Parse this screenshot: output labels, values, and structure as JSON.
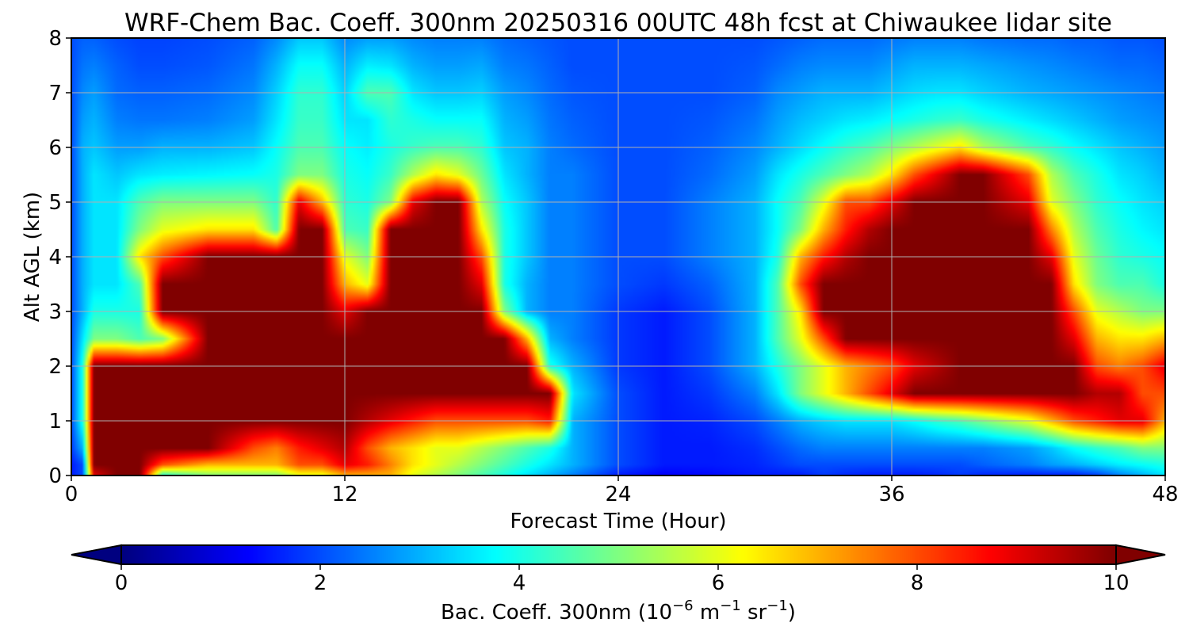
{
  "chart_data": {
    "type": "heatmap",
    "title": "WRF-Chem Bac. Coeff. 300nm  20250316 00UTC 48h fcst at Chiwaukee lidar site",
    "xlabel": "Forecast Time (Hour)",
    "ylabel": "Alt AGL (km)",
    "xlim": [
      0,
      48
    ],
    "ylim": [
      0,
      8
    ],
    "xticks": [
      "0",
      "12",
      "24",
      "36",
      "48"
    ],
    "yticks": [
      "0",
      "1",
      "2",
      "3",
      "4",
      "5",
      "6",
      "7",
      "8"
    ],
    "grid": true,
    "colormap": "jet",
    "colorbar": {
      "label_main": "Bac. Coeff. 300nm  (10",
      "label_exp1": "−6",
      "label_mid": " m",
      "label_exp2": "−1",
      "label_mid2": " sr",
      "label_exp3": "−1",
      "label_end": ")",
      "vmin": 0,
      "vmax": 10,
      "extend": "both",
      "ticks": [
        "0",
        "2",
        "4",
        "6",
        "8",
        "10"
      ],
      "orientation": "horizontal"
    },
    "x_hours": [
      0,
      0.5,
      1,
      2,
      3,
      4,
      6,
      8,
      9,
      10,
      11,
      12,
      13,
      14,
      15,
      16,
      17,
      18,
      19,
      20,
      21,
      22,
      24,
      26,
      28,
      30,
      31,
      32,
      33,
      34,
      35,
      36,
      37,
      38,
      39,
      40,
      42,
      43,
      44,
      45,
      46,
      47,
      48
    ],
    "z_km": [
      0,
      0.2,
      0.5,
      1,
      1.5,
      2,
      2.5,
      3,
      3.5,
      4,
      4.5,
      5,
      5.5,
      6,
      6.5,
      7,
      7.5,
      8
    ],
    "values_description": "backscatter coefficient per (altitude, hour) grid; rows = altitude levels",
    "values": [
      [
        1.5,
        2,
        9,
        10,
        10,
        4,
        5,
        5,
        5,
        6,
        6,
        7,
        7,
        7,
        6,
        5.5,
        5,
        4.5,
        4,
        3.5,
        3,
        2.5,
        1.5,
        1.2,
        1.3,
        1.5,
        1.5,
        1.5,
        1.8,
        1.6,
        1.5,
        1.5,
        1.5,
        1.6,
        1.8,
        1.6,
        1.5,
        1.5,
        1.5,
        1.8,
        2.5,
        3,
        3.5
      ],
      [
        1.5,
        2,
        10,
        10,
        10,
        8,
        7,
        7,
        7,
        8,
        8,
        9,
        8.5,
        7.5,
        6.5,
        6,
        5.5,
        5,
        4.5,
        4,
        3.5,
        3,
        2,
        1.5,
        1.5,
        1.6,
        1.8,
        2,
        2,
        2,
        2,
        2,
        2,
        2,
        2,
        2.2,
        2.5,
        2.8,
        3,
        3.3,
        3.6,
        3.8,
        4
      ],
      [
        1.8,
        3,
        10,
        10,
        10,
        10,
        10,
        8,
        7.5,
        8.5,
        9,
        9.5,
        8,
        7,
        6.5,
        6,
        6,
        5.5,
        5,
        4.5,
        4,
        3,
        2,
        1.5,
        1.5,
        1.7,
        2,
        2.3,
        2.5,
        2.5,
        2.5,
        2.5,
        2.5,
        2.5,
        2.5,
        2.5,
        2.8,
        3.2,
        3.8,
        4.2,
        4.5,
        5,
        5
      ],
      [
        2,
        4,
        10,
        10,
        10,
        10,
        10,
        10,
        10,
        10,
        10,
        10,
        9.5,
        9,
        8.5,
        8,
        8,
        8,
        8,
        8,
        8.5,
        3,
        2,
        1.5,
        1.6,
        2,
        2.5,
        3,
        3.3,
        3.5,
        3.5,
        3.5,
        3.8,
        4.2,
        4.5,
        5,
        6,
        7,
        8,
        8.5,
        9,
        9,
        7
      ],
      [
        2,
        4,
        10,
        10,
        10,
        10,
        10,
        10,
        10,
        10,
        10,
        10,
        10,
        10,
        10,
        10,
        10,
        10,
        10,
        10,
        10,
        3.5,
        2,
        1.5,
        1.8,
        2.5,
        3.5,
        5,
        6,
        7,
        8,
        9,
        10,
        10,
        10,
        10,
        10,
        10,
        10,
        9.5,
        9.5,
        8,
        8
      ],
      [
        2,
        4,
        10,
        10,
        10,
        10,
        10,
        10,
        10,
        10,
        10,
        10,
        10,
        10,
        10,
        10,
        10,
        10,
        10,
        10,
        4,
        3,
        1.8,
        1.5,
        2,
        3,
        4,
        5,
        6,
        7,
        7.5,
        8,
        9,
        9.5,
        10,
        10,
        10,
        10,
        10,
        8,
        7.5,
        8,
        9
      ],
      [
        2,
        3.5,
        5,
        5,
        4.5,
        5,
        10,
        10,
        10,
        10,
        10,
        10,
        10,
        10,
        10,
        10,
        10,
        10,
        10,
        7,
        3,
        2.5,
        1.8,
        1.5,
        2,
        3,
        4.5,
        6,
        8,
        10,
        10,
        10,
        10,
        10,
        10,
        10,
        10,
        10,
        9,
        7,
        6.5,
        6.5,
        7
      ],
      [
        2,
        3,
        4,
        4,
        4,
        10,
        10,
        10,
        10,
        10,
        10,
        9,
        10,
        10,
        10,
        10,
        10,
        10,
        5,
        3,
        2.5,
        2.5,
        1.8,
        1.5,
        2,
        3,
        4.5,
        6.5,
        10,
        10,
        10,
        10,
        10,
        10,
        10,
        10,
        10,
        10,
        8,
        6,
        5.5,
        5,
        5
      ],
      [
        2,
        3,
        3.5,
        3.5,
        4.5,
        10,
        10,
        10,
        10,
        10,
        10,
        7,
        6,
        10,
        10,
        10,
        10,
        9,
        4,
        3,
        2.5,
        2.5,
        2,
        1.8,
        2.2,
        3,
        4.5,
        8,
        10,
        10,
        10,
        10,
        10,
        10,
        10,
        10,
        10,
        10,
        6.5,
        5,
        4.5,
        4.5,
        4
      ],
      [
        2,
        3,
        3.5,
        3.5,
        6.5,
        8,
        10,
        10,
        10,
        10,
        10,
        6,
        5,
        10,
        10,
        10,
        10,
        8,
        4,
        3.2,
        2.5,
        2.5,
        2,
        2,
        2.5,
        3,
        4,
        7,
        8.5,
        9.5,
        10,
        10,
        10,
        10,
        10,
        10,
        10,
        9,
        6,
        4.8,
        4.2,
        4,
        3.8
      ],
      [
        2,
        3,
        3.5,
        3.5,
        5,
        6,
        6.5,
        6.5,
        4.5,
        10,
        10,
        4.5,
        4.3,
        10,
        10,
        10,
        10,
        6.5,
        4,
        3.2,
        2.5,
        2.5,
        2,
        2,
        2.5,
        3,
        3.8,
        5,
        7,
        8.5,
        9.5,
        10,
        10,
        10,
        10,
        10,
        10,
        7.5,
        5.5,
        4.5,
        4,
        3.7,
        3.5
      ],
      [
        2,
        3,
        3.5,
        3.5,
        4.5,
        5,
        5,
        5,
        4.2,
        9,
        7,
        4.2,
        4,
        5,
        9,
        10,
        10,
        5.5,
        3.8,
        3.2,
        2.5,
        2.5,
        2,
        2,
        2.5,
        3,
        3.8,
        4.5,
        6,
        8,
        8,
        9,
        10,
        10,
        10,
        10,
        9,
        6,
        5,
        4.2,
        3.8,
        3.5,
        3.3
      ],
      [
        2,
        3,
        3.5,
        3.2,
        3.5,
        3.6,
        3.7,
        3.8,
        4,
        5,
        5,
        4,
        3.8,
        4.3,
        5.5,
        6.5,
        6,
        4.8,
        3.5,
        3,
        2.5,
        2.5,
        2,
        2,
        2.3,
        2.8,
        3.5,
        4,
        4.5,
        5,
        5.5,
        6.5,
        8,
        9,
        10,
        10,
        8,
        5.5,
        4.5,
        4,
        3.5,
        3.3,
        3
      ],
      [
        2,
        3,
        3.2,
        2.8,
        2.8,
        3,
        3,
        3.2,
        3.8,
        4.5,
        4.5,
        3.8,
        3.6,
        4,
        4.3,
        4.5,
        4.5,
        4.2,
        3.2,
        3,
        2.5,
        2.3,
        2,
        2,
        2.2,
        2.6,
        3,
        3.4,
        3.8,
        4.2,
        4.5,
        5,
        5.5,
        6,
        6.5,
        5.5,
        4.5,
        4.2,
        3.8,
        3.5,
        3.2,
        3,
        2.8
      ],
      [
        2,
        2.8,
        3,
        2.5,
        2.4,
        2.4,
        2.5,
        2.8,
        3.5,
        4.3,
        4.3,
        3.5,
        3.5,
        4.2,
        4,
        3.8,
        3.8,
        3.8,
        3,
        2.8,
        2.4,
        2.2,
        2,
        2,
        2.1,
        2.4,
        2.8,
        3.1,
        3.3,
        3.5,
        3.6,
        3.8,
        4,
        4.2,
        4.3,
        4,
        3.6,
        3.4,
        3.2,
        3,
        2.8,
        2.7,
        2.6
      ],
      [
        2,
        2.6,
        2.8,
        2.3,
        2.2,
        2.2,
        2.3,
        2.6,
        3.3,
        4.2,
        4.2,
        3.3,
        4.5,
        4.5,
        3.5,
        3.2,
        3.2,
        3.3,
        2.8,
        2.6,
        2.3,
        2.1,
        2,
        2,
        2,
        2.2,
        2.6,
        2.8,
        3,
        3,
        3,
        3.2,
        3.4,
        3.5,
        3.5,
        3.3,
        3,
        2.9,
        2.8,
        2.7,
        2.6,
        2.5,
        2.4
      ],
      [
        2,
        2.4,
        2.5,
        2.2,
        2,
        2,
        2.1,
        2.4,
        3,
        3.8,
        3.8,
        3,
        3.6,
        3.5,
        3,
        2.8,
        2.8,
        2.9,
        2.5,
        2.4,
        2.2,
        2,
        2,
        2,
        2,
        2.1,
        2.3,
        2.5,
        2.6,
        2.6,
        2.6,
        2.8,
        3,
        3,
        3,
        2.9,
        2.7,
        2.6,
        2.5,
        2.4,
        2.3,
        2.3,
        2.2
      ],
      [
        2,
        2.2,
        2.2,
        2,
        1.9,
        1.9,
        2,
        2.2,
        2.6,
        3.2,
        3.2,
        2.6,
        2.8,
        2.8,
        2.6,
        2.5,
        2.5,
        2.5,
        2.3,
        2.2,
        2.1,
        2,
        2,
        2,
        2,
        2,
        2.1,
        2.2,
        2.3,
        2.3,
        2.3,
        2.4,
        2.5,
        2.5,
        2.5,
        2.4,
        2.3,
        2.3,
        2.2,
        2.2,
        2.1,
        2.1,
        2
      ]
    ]
  }
}
